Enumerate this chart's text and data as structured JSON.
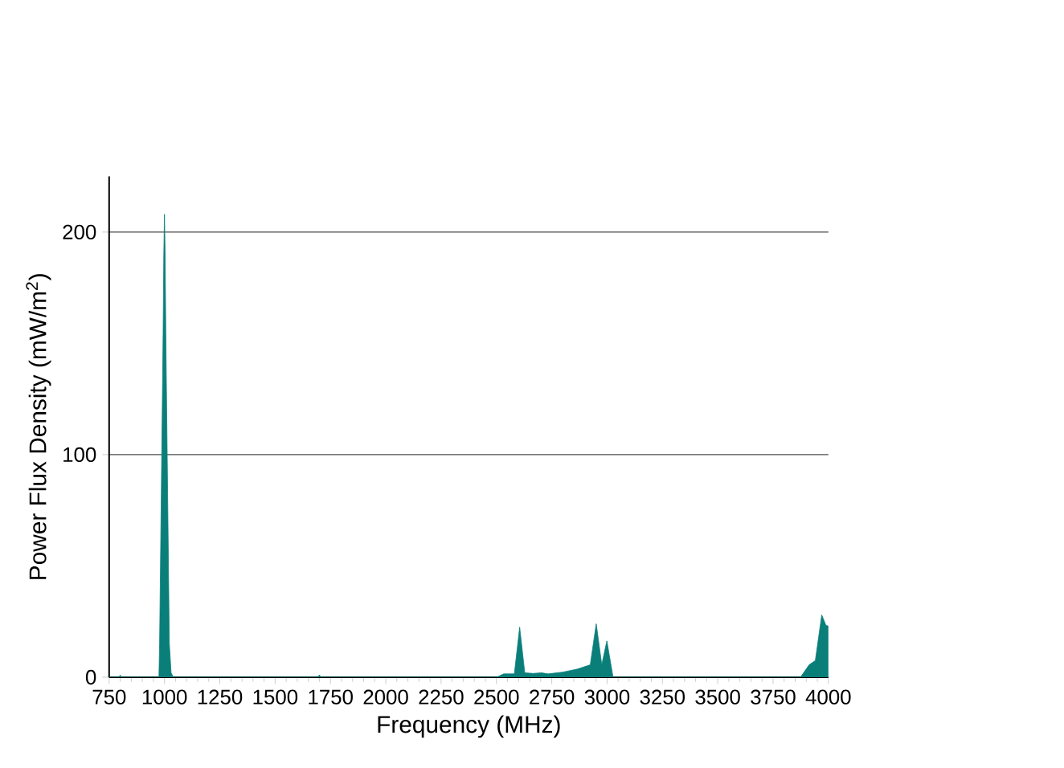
{
  "chart_data": {
    "type": "area",
    "xlabel": "Frequency (MHz)",
    "ylabel": "Power Flux Density (mW/m$^{2}$)",
    "xlim": [
      750,
      4000
    ],
    "ylim": [
      0,
      225
    ],
    "xticks": [
      750,
      1000,
      1250,
      1500,
      1750,
      2000,
      2250,
      2500,
      2750,
      3000,
      3250,
      3500,
      3750,
      4000
    ],
    "yticks": [
      0,
      100,
      200
    ],
    "grid": "y",
    "series": [
      {
        "color": "#0a7f7a",
        "x": [
          750,
          795,
          800,
          805,
          970,
          975,
          978,
          982,
          986,
          990,
          994,
          997,
          1000,
          1003,
          1006,
          1010,
          1014,
          1018,
          1022,
          1030,
          1040,
          1690,
          1700,
          1710,
          2500,
          2533,
          2581,
          2605,
          2628,
          2666,
          2704,
          2733,
          2800,
          2867,
          2924,
          2951,
          2976,
          2999,
          3027,
          3874,
          3913,
          3941,
          3970,
          3989,
          4000
        ],
        "values": [
          0,
          0,
          1,
          0,
          0,
          0,
          15,
          50,
          85,
          120,
          155,
          190,
          208,
          190,
          155,
          120,
          85,
          50,
          15,
          2,
          0,
          0,
          1,
          0,
          0,
          1.5,
          1.5,
          22.5,
          2,
          1.7,
          2,
          1.5,
          2.3,
          3.7,
          5.6,
          24,
          5.6,
          16.3,
          0,
          0,
          5.6,
          7.5,
          28,
          23.3,
          23
        ]
      }
    ]
  }
}
